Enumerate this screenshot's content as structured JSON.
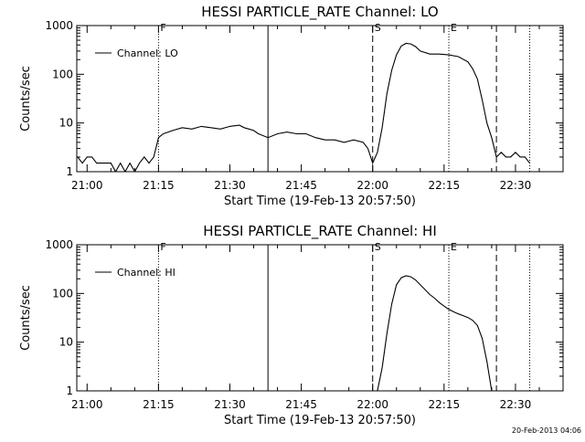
{
  "footer": {
    "timestamp": "20-Feb-2013 04:06"
  },
  "chart_data": [
    {
      "type": "line",
      "title": "HESSI PARTICLE_RATE Channel: LO",
      "xlabel": "Start Time (19-Feb-13 20:57:50)",
      "ylabel": "Counts/sec",
      "yscale": "log",
      "ylim": [
        1,
        1000
      ],
      "xlim": [
        "20:57:50",
        "22:40:00"
      ],
      "x_ticks": [
        "21:00",
        "21:15",
        "21:30",
        "21:45",
        "22:00",
        "22:15",
        "22:30"
      ],
      "y_ticks": [
        "1",
        "10",
        "100",
        "1000"
      ],
      "grid": false,
      "legend_position": "top-left",
      "series": [
        {
          "name": "Channel: LO",
          "x": [
            "20:58",
            "20:59",
            "21:00",
            "21:01",
            "21:02",
            "21:03",
            "21:04",
            "21:05",
            "21:06",
            "21:07",
            "21:08",
            "21:09",
            "21:10",
            "21:11",
            "21:12",
            "21:13",
            "21:14",
            "21:15",
            "21:16",
            "21:18",
            "21:20",
            "21:22",
            "21:24",
            "21:26",
            "21:28",
            "21:30",
            "21:32",
            "21:33",
            "21:34",
            "21:35",
            "21:36",
            "21:38",
            "21:40",
            "21:42",
            "21:44",
            "21:46",
            "21:48",
            "21:50",
            "21:52",
            "21:54",
            "21:56",
            "21:58",
            "21:59",
            "22:00",
            "22:01",
            "22:02",
            "22:03",
            "22:04",
            "22:05",
            "22:06",
            "22:07",
            "22:08",
            "22:09",
            "22:10",
            "22:12",
            "22:14",
            "22:16",
            "22:18",
            "22:20",
            "22:21",
            "22:22",
            "22:23",
            "22:24",
            "22:25",
            "22:26",
            "22:27",
            "22:28",
            "22:29",
            "22:30",
            "22:31",
            "22:32",
            "22:33"
          ],
          "y": [
            2,
            1.5,
            2,
            2,
            1.5,
            1.5,
            1.5,
            1.5,
            1,
            1.5,
            1,
            1.5,
            1,
            1.5,
            2,
            1.5,
            2,
            5,
            6,
            7,
            8,
            7.5,
            8.5,
            8,
            7.5,
            8.5,
            9,
            8,
            7.5,
            7,
            6,
            5,
            6,
            6.5,
            6,
            6,
            5,
            4.5,
            4.5,
            4,
            4.5,
            4,
            3,
            1.5,
            2.5,
            8,
            40,
            120,
            250,
            380,
            430,
            420,
            370,
            300,
            260,
            260,
            250,
            230,
            180,
            130,
            80,
            30,
            10,
            5,
            2,
            2.5,
            2,
            2,
            2.5,
            2,
            2,
            1.5
          ]
        }
      ],
      "markers": [
        {
          "label": "F",
          "x": "21:15",
          "style": "dotted"
        },
        {
          "label": "",
          "x": "21:38",
          "style": "solid"
        },
        {
          "label": "S",
          "x": "22:00",
          "style": "dashed"
        },
        {
          "label": "E",
          "x": "22:16",
          "style": "dotted"
        },
        {
          "label": "",
          "x": "22:26",
          "style": "dashed"
        },
        {
          "label": "",
          "x": "22:33",
          "style": "dotted"
        }
      ]
    },
    {
      "type": "line",
      "title": "HESSI PARTICLE_RATE Channel: HI",
      "xlabel": "Start Time (19-Feb-13 20:57:50)",
      "ylabel": "Counts/sec",
      "yscale": "log",
      "ylim": [
        1,
        1000
      ],
      "xlim": [
        "20:57:50",
        "22:40:00"
      ],
      "x_ticks": [
        "21:00",
        "21:15",
        "21:30",
        "21:45",
        "22:00",
        "22:15",
        "22:30"
      ],
      "y_ticks": [
        "1",
        "10",
        "100",
        "1000"
      ],
      "grid": false,
      "legend_position": "top-left",
      "series": [
        {
          "name": "Channel: HI",
          "x": [
            "22:01",
            "22:02",
            "22:03",
            "22:04",
            "22:05",
            "22:06",
            "22:07",
            "22:08",
            "22:09",
            "22:10",
            "22:11",
            "22:12",
            "22:13",
            "22:14",
            "22:15",
            "22:16",
            "22:17",
            "22:18",
            "22:19",
            "22:20",
            "22:21",
            "22:22",
            "22:23",
            "22:24",
            "22:25"
          ],
          "y": [
            1,
            3,
            15,
            60,
            150,
            210,
            230,
            220,
            190,
            150,
            120,
            95,
            80,
            65,
            55,
            47,
            42,
            38,
            35,
            32,
            28,
            22,
            12,
            4,
            1
          ]
        }
      ],
      "markers": [
        {
          "label": "F",
          "x": "21:15",
          "style": "dotted"
        },
        {
          "label": "",
          "x": "21:38",
          "style": "solid"
        },
        {
          "label": "S",
          "x": "22:00",
          "style": "dashed"
        },
        {
          "label": "E",
          "x": "22:16",
          "style": "dotted"
        },
        {
          "label": "",
          "x": "22:26",
          "style": "dashed"
        },
        {
          "label": "",
          "x": "22:33",
          "style": "dotted"
        }
      ]
    }
  ]
}
